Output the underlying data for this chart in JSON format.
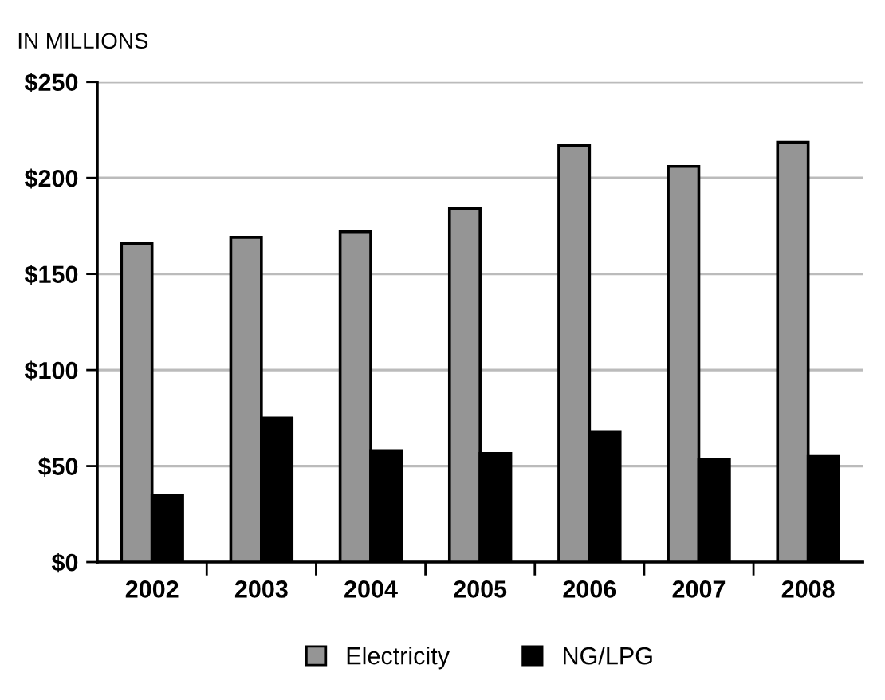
{
  "chart_data": {
    "type": "bar",
    "ylabel": "IN MILLIONS",
    "categories": [
      "2002",
      "2003",
      "2004",
      "2005",
      "2006",
      "2007",
      "2008"
    ],
    "series": [
      {
        "name": "Electricity",
        "color": "#959595",
        "values": [
          166,
          169,
          172,
          184,
          217,
          206,
          218.5
        ]
      },
      {
        "name": "NG/LPG",
        "color": "#000000",
        "values": [
          35,
          75,
          58,
          56.5,
          68,
          53.5,
          55
        ]
      }
    ],
    "ylim": [
      0,
      250
    ],
    "yticks": [
      {
        "value": 0,
        "label": "$0"
      },
      {
        "value": 50,
        "label": "$50"
      },
      {
        "value": 100,
        "label": "$100"
      },
      {
        "value": 150,
        "label": "$150"
      },
      {
        "value": 200,
        "label": "$200"
      },
      {
        "value": 250,
        "label": "$250"
      }
    ],
    "grid": "y",
    "legend": "bottom"
  }
}
